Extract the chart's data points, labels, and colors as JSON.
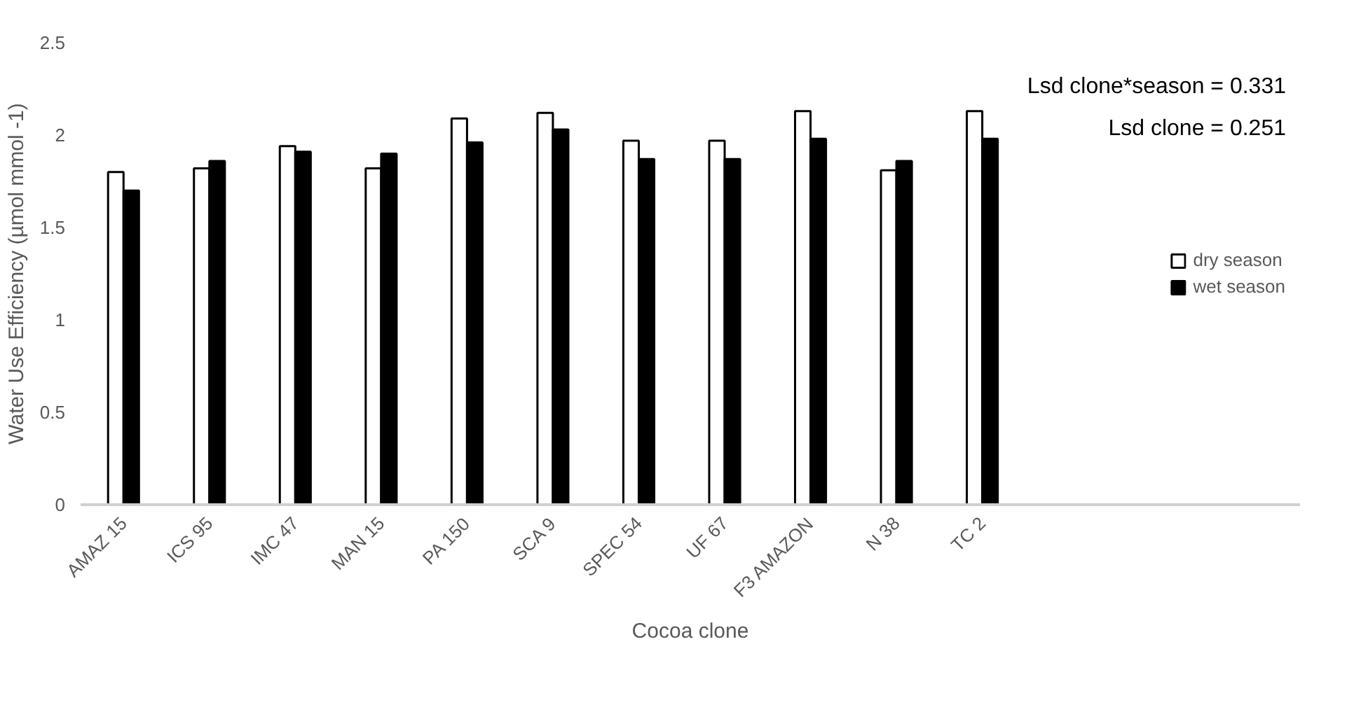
{
  "chart_data": {
    "type": "bar",
    "xlabel": "Cocoa clone",
    "ylabel": "Water Use Efficiency (µmol mmol -1)",
    "categories": [
      "AMAZ 15",
      "ICS 95",
      "IMC 47",
      "MAN 15",
      "PA 150",
      "SCA 9",
      "SPEC 54",
      "UF 67",
      "F3 AMAZON",
      "N 38",
      "TC 2"
    ],
    "series": [
      {
        "name": "dry season",
        "color": "#ffffff",
        "values": [
          1.8,
          1.82,
          1.94,
          1.82,
          2.09,
          2.12,
          1.97,
          1.97,
          2.13,
          1.81,
          2.13
        ]
      },
      {
        "name": "wet season",
        "color": "#000000",
        "values": [
          1.7,
          1.86,
          1.91,
          1.9,
          1.96,
          2.03,
          1.87,
          1.87,
          1.98,
          1.86,
          1.98
        ]
      }
    ],
    "ylim": [
      0,
      2.5
    ],
    "yticks": [
      0,
      0.5,
      1,
      1.5,
      2,
      2.5
    ],
    "grid": false,
    "legend": "right",
    "annotations": [
      "Lsd clone*season = 0.331",
      "Lsd clone = 0.251"
    ]
  }
}
